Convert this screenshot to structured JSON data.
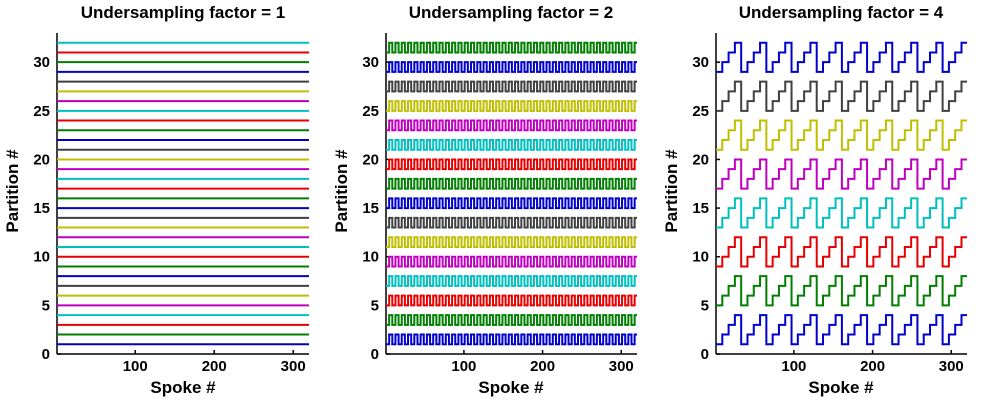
{
  "chart_data": [
    {
      "type": "line",
      "title": "Undersampling factor = 1",
      "xlabel": "Spoke #",
      "ylabel": "Partition #",
      "xlim": [
        1,
        320
      ],
      "ylim": [
        0,
        33
      ],
      "xticks": [
        "100",
        "200",
        "300"
      ],
      "yticks": [
        "0",
        "5",
        "10",
        "15",
        "20",
        "25",
        "30"
      ],
      "grid": false,
      "pattern": "constant",
      "undersampling_factor": 1,
      "series": [
        {
          "partition": 1,
          "color": "#0000cc"
        },
        {
          "partition": 2,
          "color": "#007f00"
        },
        {
          "partition": 3,
          "color": "#e60000"
        },
        {
          "partition": 4,
          "color": "#00bfbf"
        },
        {
          "partition": 5,
          "color": "#bf00bf"
        },
        {
          "partition": 6,
          "color": "#bfbf00"
        },
        {
          "partition": 7,
          "color": "#404040"
        },
        {
          "partition": 8,
          "color": "#0000cc"
        },
        {
          "partition": 9,
          "color": "#007f00"
        },
        {
          "partition": 10,
          "color": "#e60000"
        },
        {
          "partition": 11,
          "color": "#00bfbf"
        },
        {
          "partition": 12,
          "color": "#bf00bf"
        },
        {
          "partition": 13,
          "color": "#bfbf00"
        },
        {
          "partition": 14,
          "color": "#404040"
        },
        {
          "partition": 15,
          "color": "#0000cc"
        },
        {
          "partition": 16,
          "color": "#007f00"
        },
        {
          "partition": 17,
          "color": "#e60000"
        },
        {
          "partition": 18,
          "color": "#00bfbf"
        },
        {
          "partition": 19,
          "color": "#bf00bf"
        },
        {
          "partition": 20,
          "color": "#bfbf00"
        },
        {
          "partition": 21,
          "color": "#404040"
        },
        {
          "partition": 22,
          "color": "#0000cc"
        },
        {
          "partition": 23,
          "color": "#007f00"
        },
        {
          "partition": 24,
          "color": "#e60000"
        },
        {
          "partition": 25,
          "color": "#00bfbf"
        },
        {
          "partition": 26,
          "color": "#bf00bf"
        },
        {
          "partition": 27,
          "color": "#bfbf00"
        },
        {
          "partition": 28,
          "color": "#404040"
        },
        {
          "partition": 29,
          "color": "#0000cc"
        },
        {
          "partition": 30,
          "color": "#007f00"
        },
        {
          "partition": 31,
          "color": "#e60000"
        },
        {
          "partition": 32,
          "color": "#00bfbf"
        }
      ]
    },
    {
      "type": "line",
      "title": "Undersampling factor = 2",
      "xlabel": "Spoke #",
      "ylabel": "Partition #",
      "xlim": [
        1,
        320
      ],
      "ylim": [
        0,
        33
      ],
      "xticks": [
        "100",
        "200",
        "300"
      ],
      "yticks": [
        "0",
        "5",
        "10",
        "15",
        "20",
        "25",
        "30"
      ],
      "grid": false,
      "pattern": "alternating between partitions 2k-1 and 2k every 4 spokes",
      "undersampling_factor": 2,
      "period_spokes": 8,
      "series": [
        {
          "low": 1,
          "high": 2,
          "color": "#0000cc"
        },
        {
          "low": 3,
          "high": 4,
          "color": "#007f00"
        },
        {
          "low": 5,
          "high": 6,
          "color": "#e60000"
        },
        {
          "low": 7,
          "high": 8,
          "color": "#00bfbf"
        },
        {
          "low": 9,
          "high": 10,
          "color": "#bf00bf"
        },
        {
          "low": 11,
          "high": 12,
          "color": "#bfbf00"
        },
        {
          "low": 13,
          "high": 14,
          "color": "#404040"
        },
        {
          "low": 15,
          "high": 16,
          "color": "#0000cc"
        },
        {
          "low": 17,
          "high": 18,
          "color": "#007f00"
        },
        {
          "low": 19,
          "high": 20,
          "color": "#e60000"
        },
        {
          "low": 21,
          "high": 22,
          "color": "#00bfbf"
        },
        {
          "low": 23,
          "high": 24,
          "color": "#bf00bf"
        },
        {
          "low": 25,
          "high": 26,
          "color": "#bfbf00"
        },
        {
          "low": 27,
          "high": 28,
          "color": "#404040"
        },
        {
          "low": 29,
          "high": 30,
          "color": "#0000cc"
        },
        {
          "low": 31,
          "high": 32,
          "color": "#007f00"
        }
      ]
    },
    {
      "type": "line",
      "title": "Undersampling factor = 4",
      "xlabel": "Spoke #",
      "ylabel": "Partition #",
      "xlim": [
        1,
        320
      ],
      "ylim": [
        0,
        33
      ],
      "xticks": [
        "100",
        "200",
        "300"
      ],
      "yticks": [
        "0",
        "5",
        "10",
        "15",
        "20",
        "25",
        "30"
      ],
      "grid": false,
      "pattern": "staircase cycling through partitions 4k-3 to 4k every 8 spokes",
      "undersampling_factor": 4,
      "period_spokes": 32,
      "series": [
        {
          "low": 1,
          "high": 4,
          "color": "#0000cc"
        },
        {
          "low": 5,
          "high": 8,
          "color": "#007f00"
        },
        {
          "low": 9,
          "high": 12,
          "color": "#e60000"
        },
        {
          "low": 13,
          "high": 16,
          "color": "#00bfbf"
        },
        {
          "low": 17,
          "high": 20,
          "color": "#bf00bf"
        },
        {
          "low": 21,
          "high": 24,
          "color": "#bfbf00"
        },
        {
          "low": 25,
          "high": 28,
          "color": "#404040"
        },
        {
          "low": 29,
          "high": 32,
          "color": "#0000cc"
        }
      ]
    }
  ]
}
